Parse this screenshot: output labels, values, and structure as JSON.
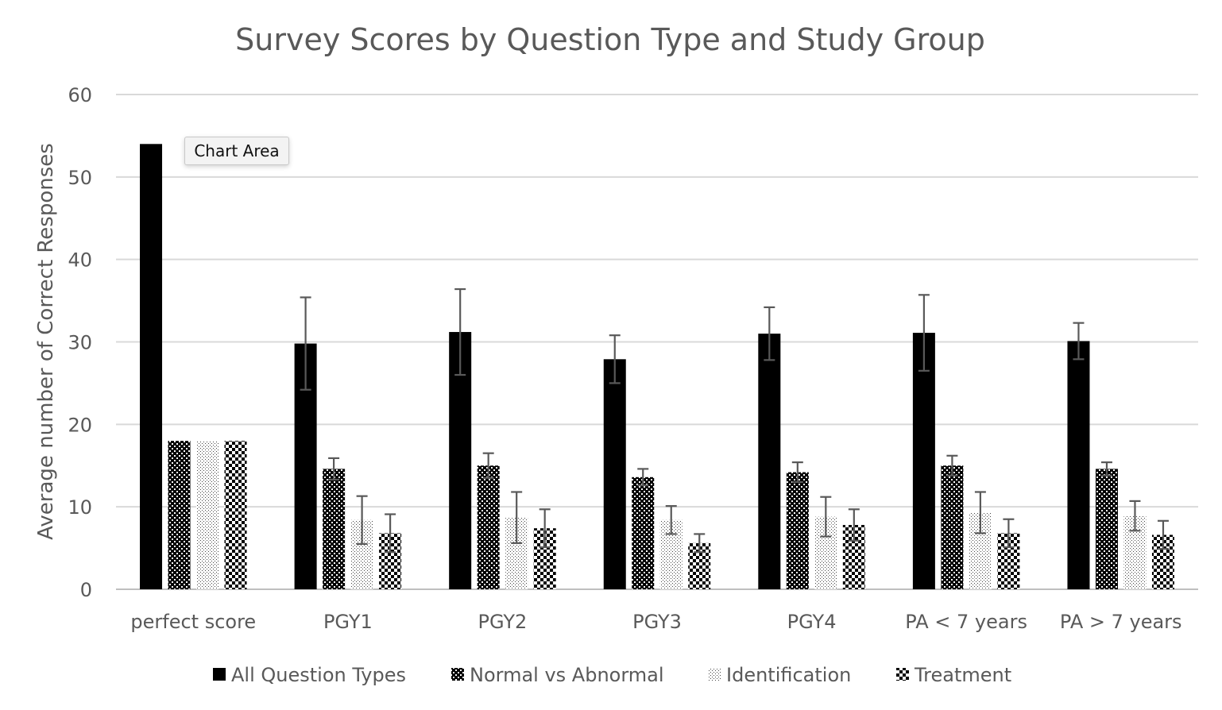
{
  "tooltip": {
    "label": "Chart Area"
  },
  "colors": {
    "grid": "#d9d9d9",
    "axis": "#bfbfbf",
    "text": "#595959",
    "error_bar": "#595959",
    "bar": "#000000"
  },
  "chart_data": {
    "type": "bar",
    "title": "Survey Scores by Question Type and Study Group",
    "xlabel": "",
    "ylabel": "Average number of Correct Responses",
    "ylim": [
      0,
      60
    ],
    "yticks": [
      0,
      10,
      20,
      30,
      40,
      50,
      60
    ],
    "grid": true,
    "legend_position": "bottom",
    "categories": [
      "perfect score",
      "PGY1",
      "PGY2",
      "PGY3",
      "PGY4",
      "PA < 7 years",
      "PA > 7 years"
    ],
    "series": [
      {
        "name": "All Question Types",
        "pattern": "solid",
        "values": [
          54,
          29.8,
          31.2,
          27.9,
          31.0,
          31.1,
          30.1
        ],
        "errors": [
          0,
          5.6,
          5.2,
          2.9,
          3.2,
          4.6,
          2.2
        ]
      },
      {
        "name": "Normal vs Abnormal",
        "pattern": "checker-dense",
        "values": [
          18,
          14.6,
          15.0,
          13.6,
          14.2,
          15.0,
          14.6
        ],
        "errors": [
          0,
          1.3,
          1.5,
          1.0,
          1.2,
          1.2,
          0.8
        ]
      },
      {
        "name": "Identification",
        "pattern": "dots",
        "values": [
          18,
          8.4,
          8.7,
          8.4,
          8.8,
          9.3,
          8.9
        ],
        "errors": [
          0,
          2.9,
          3.1,
          1.7,
          2.4,
          2.5,
          1.8
        ]
      },
      {
        "name": "Treatment",
        "pattern": "checker-large",
        "values": [
          18,
          6.8,
          7.4,
          5.6,
          7.8,
          6.8,
          6.6
        ],
        "errors": [
          0,
          2.3,
          2.3,
          1.1,
          1.9,
          1.7,
          1.7
        ]
      }
    ]
  }
}
